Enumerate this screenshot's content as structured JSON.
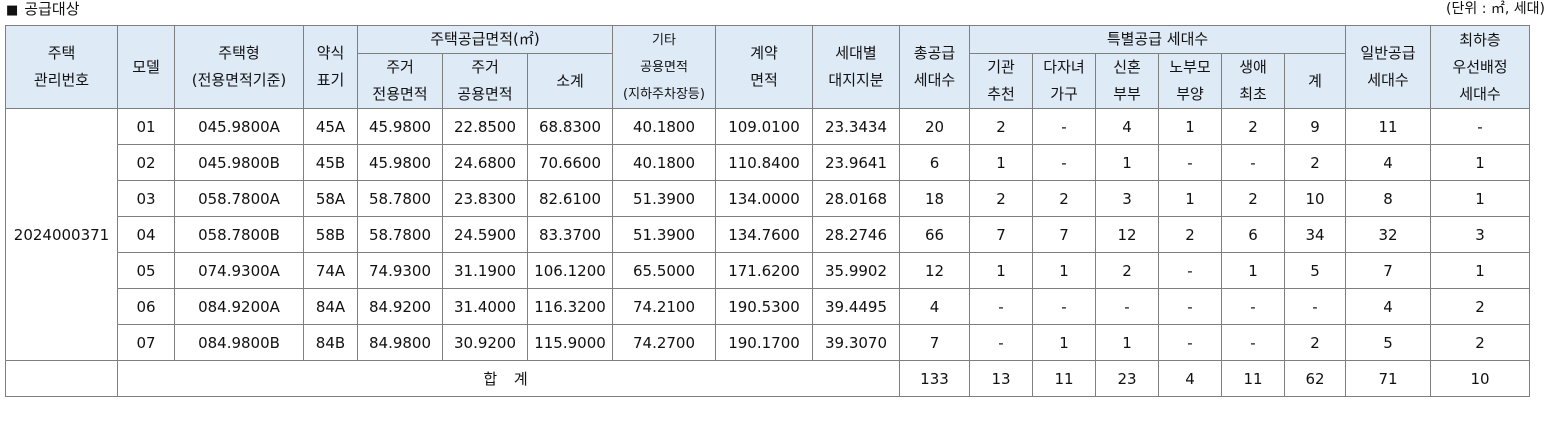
{
  "title": "공급대상",
  "unit_note": "(단위 : ㎡, 세대)",
  "headers": {
    "house_no": "주택\n관리번호",
    "model": "모델",
    "house_type": "주택형\n(전용면적기준)",
    "abbr": "약식\n표기",
    "supply_area": "주택공급면적(㎡)",
    "resid_exclusive": "주거\n전용면적",
    "resid_common": "주거\n공용면적",
    "subtotal": "소계",
    "other_common": "기타\n공용면적\n(지하주차장등)",
    "contract_area": "계약\n면적",
    "land_share": "세대별\n대지지분",
    "total_supply": "총공급\n세대수",
    "special": "특별공급 세대수",
    "institution": "기관\n추천",
    "multichild": "다자녀\n가구",
    "newlywed": "신혼\n부부",
    "elderly": "노부모\n부양",
    "first_time": "생애\n최초",
    "special_sum": "계",
    "general": "일반공급\n세대수",
    "lowest_floor": "최하층\n우선배정\n세대수"
  },
  "house_no": "2024000371",
  "rows": [
    {
      "model": "01",
      "house_type": "045.9800A",
      "abbr": "45A",
      "excl": "45.9800",
      "common": "22.8500",
      "sub": "68.8300",
      "other": "40.1800",
      "contract": "109.0100",
      "land": "23.3434",
      "total": "20",
      "inst": "2",
      "multi": "-",
      "newly": "4",
      "elder": "1",
      "first": "2",
      "sp": "9",
      "gen": "11",
      "low": "-"
    },
    {
      "model": "02",
      "house_type": "045.9800B",
      "abbr": "45B",
      "excl": "45.9800",
      "common": "24.6800",
      "sub": "70.6600",
      "other": "40.1800",
      "contract": "110.8400",
      "land": "23.9641",
      "total": "6",
      "inst": "1",
      "multi": "-",
      "newly": "1",
      "elder": "-",
      "first": "-",
      "sp": "2",
      "gen": "4",
      "low": "1"
    },
    {
      "model": "03",
      "house_type": "058.7800A",
      "abbr": "58A",
      "excl": "58.7800",
      "common": "23.8300",
      "sub": "82.6100",
      "other": "51.3900",
      "contract": "134.0000",
      "land": "28.0168",
      "total": "18",
      "inst": "2",
      "multi": "2",
      "newly": "3",
      "elder": "1",
      "first": "2",
      "sp": "10",
      "gen": "8",
      "low": "1"
    },
    {
      "model": "04",
      "house_type": "058.7800B",
      "abbr": "58B",
      "excl": "58.7800",
      "common": "24.5900",
      "sub": "83.3700",
      "other": "51.3900",
      "contract": "134.7600",
      "land": "28.2746",
      "total": "66",
      "inst": "7",
      "multi": "7",
      "newly": "12",
      "elder": "2",
      "first": "6",
      "sp": "34",
      "gen": "32",
      "low": "3"
    },
    {
      "model": "05",
      "house_type": "074.9300A",
      "abbr": "74A",
      "excl": "74.9300",
      "common": "31.1900",
      "sub": "106.1200",
      "other": "65.5000",
      "contract": "171.6200",
      "land": "35.9902",
      "total": "12",
      "inst": "1",
      "multi": "1",
      "newly": "2",
      "elder": "-",
      "first": "1",
      "sp": "5",
      "gen": "7",
      "low": "1"
    },
    {
      "model": "06",
      "house_type": "084.9200A",
      "abbr": "84A",
      "excl": "84.9200",
      "common": "31.4000",
      "sub": "116.3200",
      "other": "74.2100",
      "contract": "190.5300",
      "land": "39.4495",
      "total": "4",
      "inst": "-",
      "multi": "-",
      "newly": "-",
      "elder": "-",
      "first": "-",
      "sp": "-",
      "gen": "4",
      "low": "2"
    },
    {
      "model": "07",
      "house_type": "084.9800B",
      "abbr": "84B",
      "excl": "84.9800",
      "common": "30.9200",
      "sub": "115.9000",
      "other": "74.2700",
      "contract": "190.1700",
      "land": "39.3070",
      "total": "7",
      "inst": "-",
      "multi": "1",
      "newly": "1",
      "elder": "-",
      "first": "-",
      "sp": "2",
      "gen": "5",
      "low": "2"
    }
  ],
  "totals": {
    "label": "합 계",
    "total": "133",
    "inst": "13",
    "multi": "11",
    "newly": "23",
    "elder": "4",
    "first": "11",
    "sp": "62",
    "gen": "71",
    "low": "10"
  }
}
